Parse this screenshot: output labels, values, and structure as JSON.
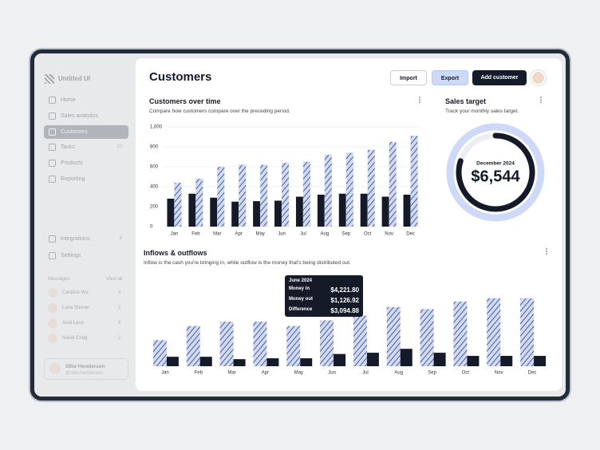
{
  "sidebar": {
    "brand": "Untitled UI",
    "nav": [
      {
        "label": "Home"
      },
      {
        "label": "Sales analytics"
      },
      {
        "label": "Customers"
      },
      {
        "label": "Tasks",
        "badge": 10
      },
      {
        "label": "Products"
      },
      {
        "label": "Reporting"
      }
    ],
    "footer_nav": [
      {
        "label": "Integrations",
        "badge": 4
      },
      {
        "label": "Settings"
      }
    ],
    "messages": {
      "title": "Messages",
      "view_all": "View all",
      "items": [
        {
          "name": "Candice Wu",
          "count": 4
        },
        {
          "name": "Lana Steiner",
          "count": 2
        },
        {
          "name": "Andi Lane",
          "count": 6
        },
        {
          "name": "Natali Craig",
          "count": 2
        }
      ]
    },
    "user": {
      "name": "Ollie Henderson",
      "handle": "@ollie.henderson"
    }
  },
  "header": {
    "title": "Customers",
    "buttons": [
      "Import",
      "Export",
      "Add customer"
    ]
  },
  "customers_chart": {
    "type": "bar",
    "title": "Customers over time",
    "subtitle": "Compare how customers compare over the preceding period.",
    "categories": [
      "Jan",
      "Feb",
      "Mar",
      "Apr",
      "May",
      "Jun",
      "Jul",
      "Aug",
      "Sep",
      "Oct",
      "Nov",
      "Dec"
    ],
    "series": [
      {
        "color": "#151a28",
        "values": [
          280,
          330,
          290,
          250,
          255,
          260,
          300,
          320,
          330,
          330,
          300,
          320
        ]
      },
      {
        "color": "#cfdaf8",
        "values": [
          440,
          480,
          600,
          620,
          620,
          640,
          650,
          720,
          740,
          770,
          850,
          910
        ]
      }
    ],
    "ylim": [
      0,
      1000
    ],
    "yticks": [
      0,
      200,
      400,
      600,
      800,
      {
        "value": 1000,
        "label": "1,000"
      }
    ],
    "grid": true
  },
  "sales_target": {
    "title": "Sales target",
    "subtitle": "Track your monthly sales target.",
    "period": "December 2024",
    "amount": "$6,544",
    "progress_percent": 80
  },
  "inflows_chart": {
    "type": "bar",
    "title": "Inflows & outflows",
    "subtitle": "Inflow is the cash you're bringing in, while outflow is the money that's being distributed out.",
    "categories": [
      "Jan",
      "Feb",
      "Mar",
      "Apr",
      "May",
      "Jun",
      "Jul",
      "Aug",
      "Sep",
      "Oct",
      "Nov",
      "Dec"
    ],
    "series": [
      {
        "color": "#cfdaf8",
        "values": [
          2400,
          3700,
          4100,
          4100,
          3700,
          4221.8,
          4650,
          5450,
          5250,
          5950,
          6250,
          6250
        ]
      },
      {
        "color": "#151a28",
        "values": [
          870,
          870,
          650,
          730,
          730,
          1126.92,
          1240,
          1600,
          1240,
          950,
          950,
          950
        ]
      }
    ],
    "ylim": [
      0,
      8000
    ]
  },
  "tooltip": {
    "title": "June 2024",
    "rows": [
      {
        "label": "Money in",
        "value": "$4,221.80"
      },
      {
        "label": "Money out",
        "value": "$1,126.92"
      },
      {
        "label": "Difference",
        "value": "$3,094.88"
      }
    ]
  }
}
